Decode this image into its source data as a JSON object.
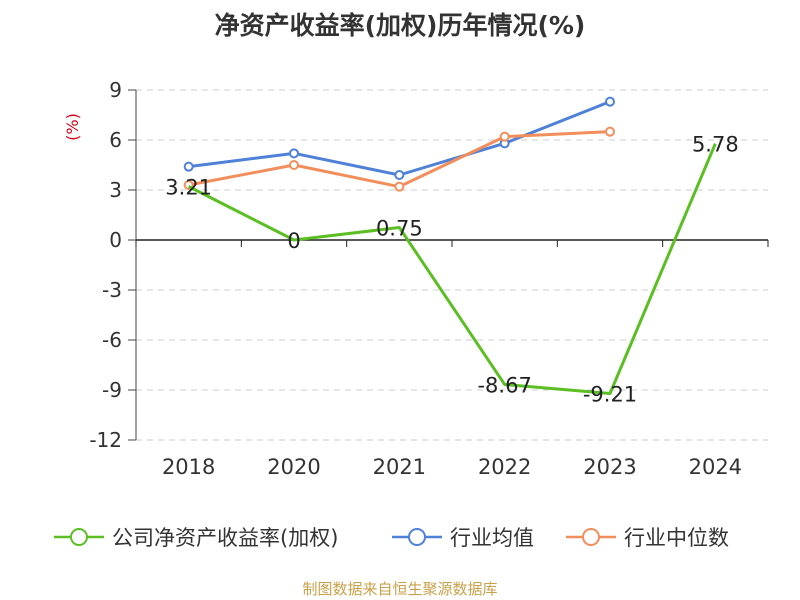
{
  "title": "净资产收益率(加权)历年情况(%)",
  "source": "制图数据来自恒生聚源数据库",
  "colors": {
    "company": "#5bbf23",
    "industry_avg": "#4f81d8",
    "industry_median": "#f28e5c",
    "axis_unit": "#d0021b"
  },
  "chart_data": {
    "type": "line",
    "title": "净资产收益率(加权)历年情况(%)",
    "ylabel": "(%)",
    "xlabel": "",
    "categories": [
      "2018",
      "2020",
      "2021",
      "2022",
      "2023",
      "2024"
    ],
    "ylim": [
      -12,
      9
    ],
    "yticks": [
      9,
      6,
      3,
      0,
      -3,
      -6,
      -9,
      -12
    ],
    "ytick_labels": [
      "9",
      "6",
      "3",
      "0",
      "-3",
      "-6",
      "-9",
      "-12"
    ],
    "grid": true,
    "legend_position": "bottom",
    "series": [
      {
        "name": "公司净资产收益率(加权)",
        "color": "#5bbf23",
        "values": [
          3.21,
          0,
          0.75,
          -8.67,
          -9.21,
          5.78
        ],
        "labels": [
          "3.21",
          "0",
          "0.75",
          "-8.67",
          "-9.21",
          "5.78"
        ],
        "show_markers": false
      },
      {
        "name": "行业均值",
        "color": "#4f81d8",
        "values": [
          4.4,
          5.2,
          3.9,
          5.8,
          8.3,
          null
        ],
        "show_markers": true
      },
      {
        "name": "行业中位数",
        "color": "#f28e5c",
        "values": [
          3.3,
          4.5,
          3.2,
          6.2,
          6.5,
          null
        ],
        "show_markers": true
      }
    ]
  }
}
